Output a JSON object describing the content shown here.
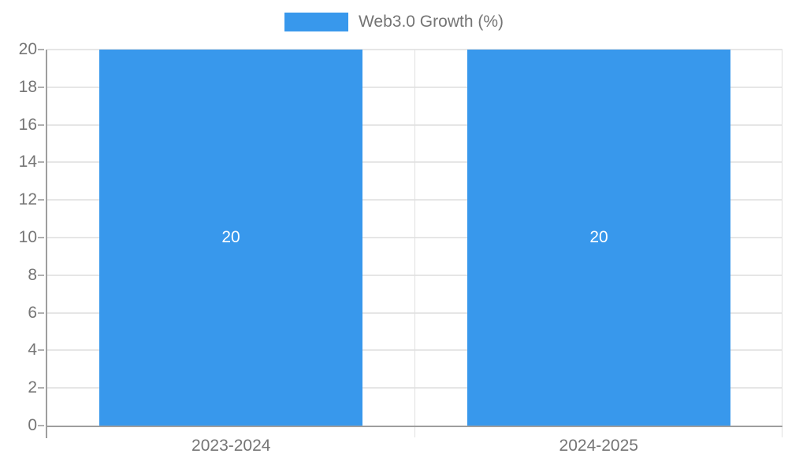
{
  "chart_data": {
    "type": "bar",
    "title": "",
    "categories": [
      "2023-2024",
      "2024-2025"
    ],
    "series": [
      {
        "name": "Web3.0 Growth (%)",
        "values": [
          20,
          20
        ],
        "data_labels": [
          "20",
          "20"
        ]
      }
    ],
    "ylim": [
      0,
      20
    ],
    "ytick_step": 2,
    "ytick_labels": [
      "0",
      "2",
      "4",
      "6",
      "8",
      "10",
      "12",
      "14",
      "16",
      "18",
      "20"
    ],
    "grid": true,
    "legend_position": "top",
    "xlabel": "",
    "ylabel": ""
  },
  "legend": {
    "label": "Web3.0 Growth (%)"
  },
  "colors": {
    "bar": "#3898ec",
    "bar_label": "#ffffff",
    "axis_text": "#757575",
    "gridline": "#e6e6e6",
    "axis_line": "#9e9e9e",
    "tick": "#b0b0b0",
    "separator": "#e0e0e0",
    "background": "#ffffff"
  }
}
